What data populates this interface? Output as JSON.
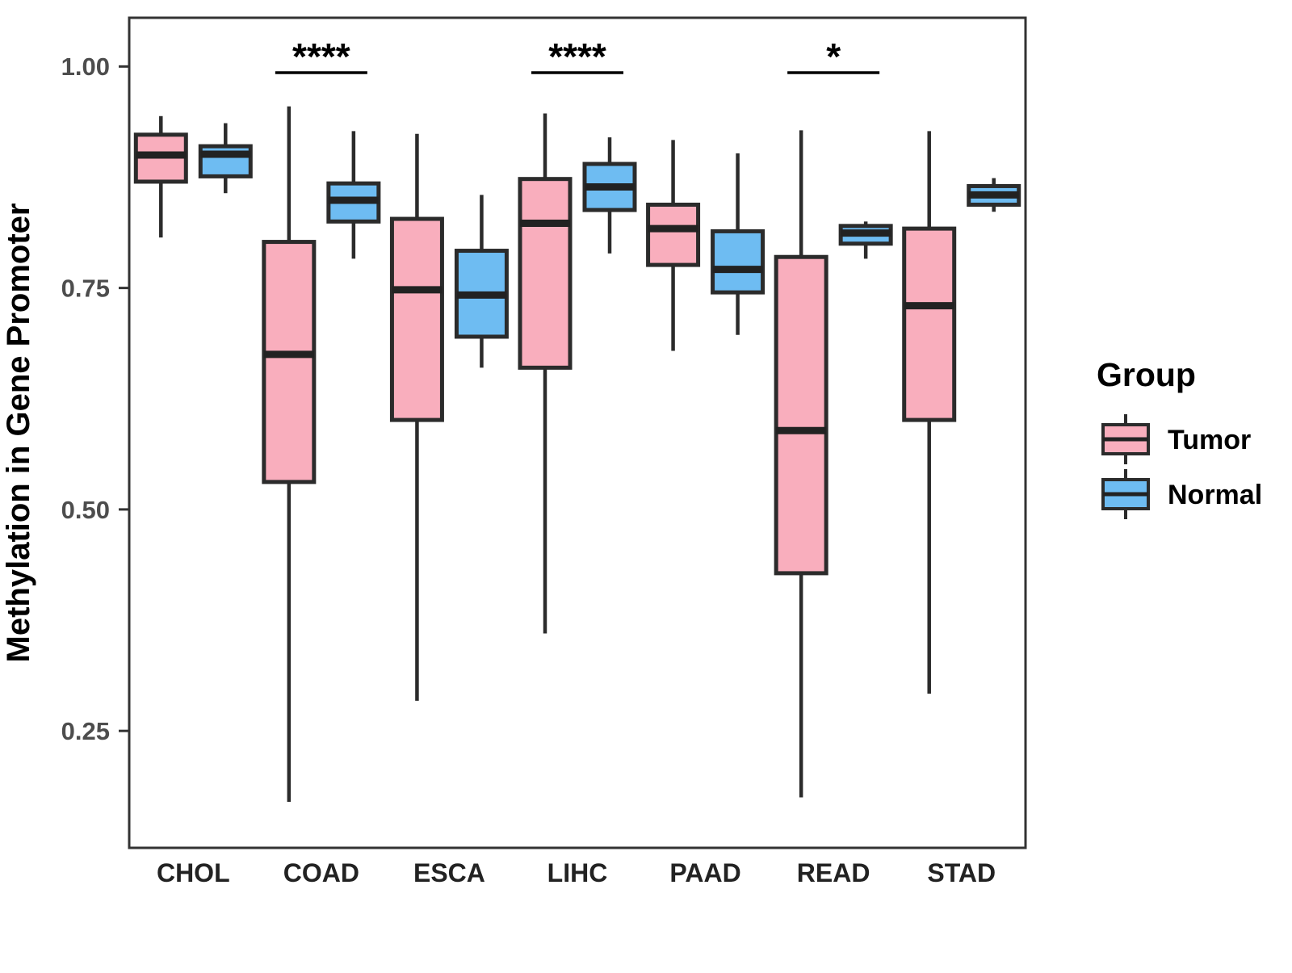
{
  "chart_data": {
    "type": "boxplot",
    "title": "",
    "ylabel": "Methylation in Gene Promoter",
    "xlabel": "",
    "categories": [
      "CHOL",
      "COAD",
      "ESCA",
      "LIHC",
      "PAAD",
      "READ",
      "STAD"
    ],
    "groups": [
      "Tumor",
      "Normal"
    ],
    "ylim": [
      0.118,
      1.055
    ],
    "yticks": [
      0.25,
      0.5,
      0.75,
      1.0
    ],
    "ytick_labels": [
      "0.25",
      "0.50",
      "0.75",
      "1.00"
    ],
    "grid": "off",
    "legend": {
      "title": "Group",
      "position": "right",
      "entries": [
        {
          "label": "Tumor",
          "color": "#F9AEBD"
        },
        {
          "label": "Normal",
          "color": "#6EBCF2"
        }
      ]
    },
    "series": [
      {
        "name": "Tumor",
        "color": "#F9AEBD",
        "boxes": [
          {
            "category": "CHOL",
            "min": 0.807,
            "q1": 0.87,
            "median": 0.9,
            "q3": 0.923,
            "max": 0.944
          },
          {
            "category": "COAD",
            "min": 0.17,
            "q1": 0.531,
            "median": 0.675,
            "q3": 0.802,
            "max": 0.955
          },
          {
            "category": "ESCA",
            "min": 0.284,
            "q1": 0.601,
            "median": 0.748,
            "q3": 0.828,
            "max": 0.924
          },
          {
            "category": "LIHC",
            "min": 0.36,
            "q1": 0.66,
            "median": 0.823,
            "q3": 0.873,
            "max": 0.947
          },
          {
            "category": "PAAD",
            "min": 0.679,
            "q1": 0.776,
            "median": 0.817,
            "q3": 0.844,
            "max": 0.917
          },
          {
            "category": "READ",
            "min": 0.175,
            "q1": 0.428,
            "median": 0.589,
            "q3": 0.785,
            "max": 0.928
          },
          {
            "category": "STAD",
            "min": 0.292,
            "q1": 0.601,
            "median": 0.73,
            "q3": 0.817,
            "max": 0.927
          }
        ]
      },
      {
        "name": "Normal",
        "color": "#6EBCF2",
        "boxes": [
          {
            "category": "CHOL",
            "min": 0.857,
            "q1": 0.876,
            "median": 0.901,
            "q3": 0.91,
            "max": 0.936
          },
          {
            "category": "COAD",
            "min": 0.783,
            "q1": 0.825,
            "median": 0.849,
            "q3": 0.868,
            "max": 0.927
          },
          {
            "category": "ESCA",
            "min": 0.66,
            "q1": 0.695,
            "median": 0.742,
            "q3": 0.792,
            "max": 0.855
          },
          {
            "category": "LIHC",
            "min": 0.789,
            "q1": 0.838,
            "median": 0.864,
            "q3": 0.89,
            "max": 0.92
          },
          {
            "category": "PAAD",
            "min": 0.697,
            "q1": 0.745,
            "median": 0.771,
            "q3": 0.814,
            "max": 0.902
          },
          {
            "category": "READ",
            "min": 0.783,
            "q1": 0.8,
            "median": 0.812,
            "q3": 0.82,
            "max": 0.825
          },
          {
            "category": "STAD",
            "min": 0.836,
            "q1": 0.844,
            "median": 0.855,
            "q3": 0.865,
            "max": 0.874
          }
        ]
      }
    ],
    "significance": [
      {
        "category": "COAD",
        "label": "****"
      },
      {
        "category": "LIHC",
        "label": "****"
      },
      {
        "category": "READ",
        "label": "*"
      }
    ],
    "colors": {
      "box_stroke": "#2B2B2B",
      "median_stroke": "#222222",
      "panel_border": "#333333",
      "tick": "#333333",
      "ytick_label": "#4D4D4D",
      "xtick_label": "#222222",
      "axis_title": "#000000",
      "significance": "#000000",
      "legend_text": "#000000",
      "background": "#FFFFFF"
    }
  }
}
